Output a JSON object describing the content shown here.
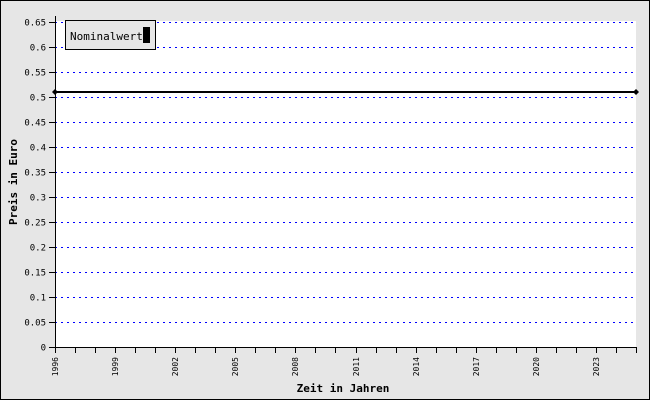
{
  "chart_data": {
    "type": "line",
    "title": "",
    "xlabel": "Zeit in Jahren",
    "ylabel": "Preis in Euro",
    "xlim": [
      1996,
      2025
    ],
    "ylim": [
      0,
      0.65
    ],
    "x_ticks": [
      1996,
      1999,
      2002,
      2005,
      2008,
      2011,
      2014,
      2017,
      2020,
      2023
    ],
    "y_ticks": [
      "0",
      "0.05",
      "0.1",
      "0.15",
      "0.2",
      "0.25",
      "0.3",
      "0.35",
      "0.4",
      "0.45",
      "0.5",
      "0.55",
      "0.6",
      "0.65"
    ],
    "grid": "horizontal dotted",
    "grid_color": "#0000ff",
    "legend_placement": "top-left",
    "series": [
      {
        "name": "Nominalwert",
        "color": "#000000",
        "x": [
          1996,
          2025
        ],
        "y": [
          0.51,
          0.51
        ]
      }
    ]
  }
}
